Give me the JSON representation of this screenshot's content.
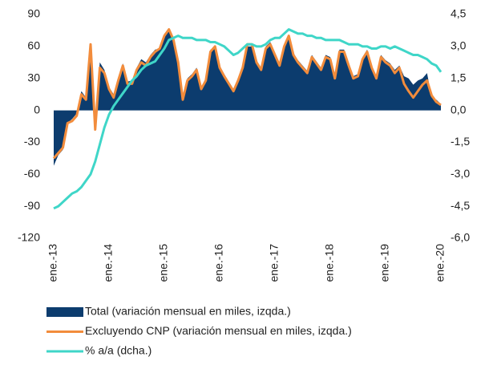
{
  "chart_data": {
    "type": "line",
    "categories": [
      "ene.-13",
      null,
      null,
      null,
      null,
      null,
      null,
      null,
      null,
      null,
      null,
      null,
      "ene.-14",
      null,
      null,
      null,
      null,
      null,
      null,
      null,
      null,
      null,
      null,
      null,
      "ene.-15",
      null,
      null,
      null,
      null,
      null,
      null,
      null,
      null,
      null,
      null,
      null,
      "ene.-16",
      null,
      null,
      null,
      null,
      null,
      null,
      null,
      null,
      null,
      null,
      null,
      "ene.-17",
      null,
      null,
      null,
      null,
      null,
      null,
      null,
      null,
      null,
      null,
      null,
      "ene.-18",
      null,
      null,
      null,
      null,
      null,
      null,
      null,
      null,
      null,
      null,
      null,
      "ene.-19",
      null,
      null,
      null,
      null,
      null,
      null,
      null,
      null,
      null,
      null,
      null,
      "ene.-20"
    ],
    "series": [
      {
        "name": "Total (variación mensual en miles, izqda.)",
        "kind": "area",
        "color": "#0c3c6e",
        "values": [
          -52,
          -42,
          -37,
          -12,
          -8,
          -3,
          18,
          12,
          55,
          -5,
          45,
          38,
          22,
          15,
          30,
          44,
          27,
          28,
          40,
          48,
          45,
          52,
          57,
          58,
          72,
          74,
          64,
          45,
          12,
          30,
          34,
          40,
          22,
          30,
          57,
          58,
          42,
          34,
          27,
          20,
          30,
          42,
          60,
          60,
          47,
          40,
          60,
          64,
          54,
          44,
          62,
          70,
          54,
          47,
          42,
          37,
          52,
          46,
          40,
          52,
          50,
          32,
          57,
          57,
          44,
          32,
          34,
          50,
          57,
          42,
          32,
          52,
          47,
          44,
          38,
          42,
          32,
          30,
          24,
          28,
          30,
          35,
          12,
          10,
          6
        ]
      },
      {
        "name": "Excluyendo CNP (variación mensual en miles, izqda.)",
        "kind": "line",
        "color": "#f28c3c",
        "values": [
          -45,
          -40,
          -35,
          -12,
          -10,
          -5,
          15,
          10,
          62,
          -18,
          40,
          35,
          20,
          12,
          28,
          42,
          25,
          25,
          38,
          45,
          42,
          50,
          55,
          58,
          70,
          76,
          66,
          45,
          10,
          28,
          32,
          38,
          20,
          28,
          55,
          60,
          40,
          32,
          25,
          18,
          28,
          40,
          62,
          62,
          45,
          38,
          58,
          62,
          52,
          42,
          60,
          70,
          52,
          45,
          40,
          35,
          50,
          44,
          38,
          50,
          48,
          30,
          55,
          55,
          42,
          30,
          32,
          48,
          55,
          40,
          30,
          50,
          45,
          42,
          35,
          40,
          25,
          18,
          12,
          18,
          24,
          28,
          14,
          8,
          5
        ]
      },
      {
        "name": "% a/a (dcha.)",
        "kind": "line",
        "axis": "y2",
        "color": "#3fd6c8",
        "values": [
          -4.6,
          -4.5,
          -4.3,
          -4.1,
          -3.9,
          -3.8,
          -3.6,
          -3.3,
          -3.0,
          -2.4,
          -1.6,
          -0.8,
          -0.2,
          0.2,
          0.5,
          0.8,
          1.1,
          1.4,
          1.6,
          1.9,
          2.1,
          2.2,
          2.3,
          2.6,
          2.9,
          3.3,
          3.4,
          3.5,
          3.4,
          3.4,
          3.4,
          3.3,
          3.3,
          3.3,
          3.2,
          3.2,
          3.1,
          3.0,
          2.8,
          2.6,
          2.7,
          2.9,
          3.1,
          3.1,
          3.0,
          3.0,
          3.1,
          3.3,
          3.4,
          3.4,
          3.6,
          3.8,
          3.7,
          3.6,
          3.6,
          3.5,
          3.5,
          3.4,
          3.4,
          3.3,
          3.3,
          3.3,
          3.3,
          3.2,
          3.1,
          3.1,
          3.1,
          3.0,
          3.0,
          2.9,
          2.9,
          3.0,
          3.0,
          2.9,
          3.0,
          2.9,
          2.8,
          2.7,
          2.6,
          2.6,
          2.5,
          2.4,
          2.2,
          2.1,
          1.8
        ]
      }
    ],
    "ylim": [
      -120,
      90
    ],
    "yticks": [
      90,
      60,
      30,
      0,
      -30,
      -60,
      -90,
      -120
    ],
    "y2lim": [
      -6.0,
      4.5
    ],
    "y2ticks": [
      {
        "value": 4.5,
        "label": "4,5"
      },
      {
        "value": 3.0,
        "label": "3,0"
      },
      {
        "value": 1.5,
        "label": "1,5"
      },
      {
        "value": 0.0,
        "label": "0,0"
      },
      {
        "value": -1.5,
        "label": "-1,5"
      },
      {
        "value": -3.0,
        "label": "-3,0"
      },
      {
        "value": -4.5,
        "label": "-4,5"
      },
      {
        "value": -6.0,
        "label": "-6,0"
      }
    ]
  }
}
